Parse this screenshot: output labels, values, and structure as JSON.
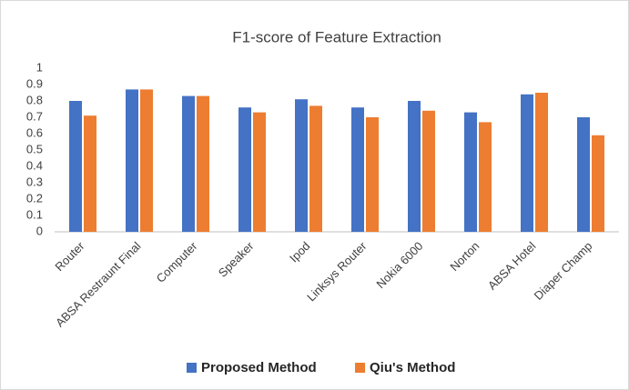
{
  "chart_data": {
    "type": "bar",
    "title": "F1-score of Feature Extraction",
    "categories": [
      "Router",
      "ABSA Restraunt Final",
      "Computer",
      "Speaker",
      "Ipod",
      "Linksys Router",
      "Nokia 6000",
      "Norton",
      "ABSA Hotel",
      "Diaper Champ"
    ],
    "series": [
      {
        "name": "Proposed Method",
        "color": "#4472c4",
        "values": [
          0.8,
          0.87,
          0.83,
          0.76,
          0.81,
          0.76,
          0.8,
          0.73,
          0.84,
          0.7
        ]
      },
      {
        "name": "Qiu's Method",
        "color": "#ed7d31",
        "values": [
          0.71,
          0.87,
          0.83,
          0.73,
          0.77,
          0.7,
          0.74,
          0.67,
          0.85,
          0.59
        ]
      }
    ],
    "ylim": [
      0,
      1
    ],
    "yticks": [
      0,
      0.1,
      0.2,
      0.3,
      0.4,
      0.5,
      0.6,
      0.7,
      0.8,
      0.9,
      1
    ],
    "grid": false,
    "legend": "bottom"
  }
}
